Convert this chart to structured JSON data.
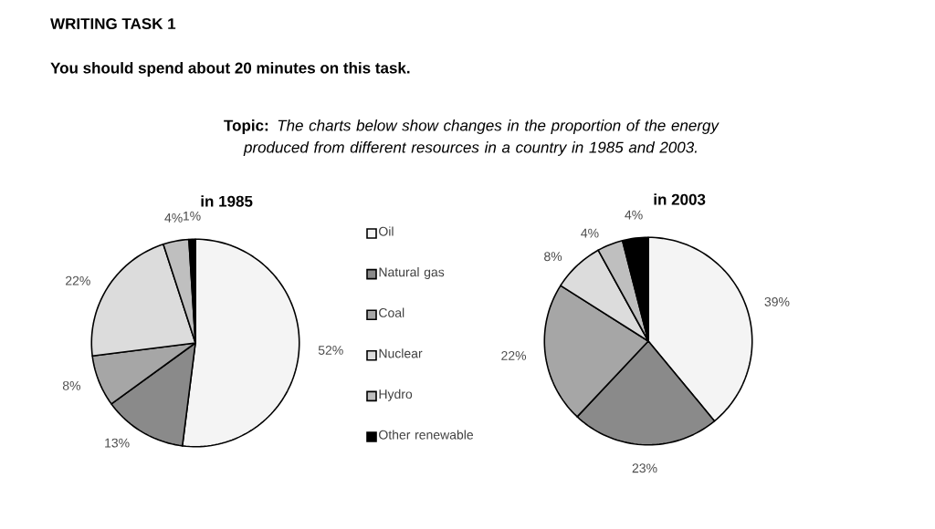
{
  "chart_data": [
    {
      "type": "other",
      "title": "WRITING TASK 1",
      "subtitle": "You should spend about 20 minutes on this task.",
      "annotations": [
        "**Topic:** *The charts below show changes in the proportion of the energy produced from different resources in a country in 1985 and 2003.*"
      ]
    },
    {
      "type": "pie",
      "title": "in 1985",
      "legend": "right",
      "categories": [
        "Oil",
        "Natural gas",
        "Coal",
        "Nuclear",
        "Hydro",
        "Other renewable"
      ],
      "values": [
        52,
        13,
        8,
        22,
        4,
        1
      ],
      "value_labels": [
        "52%",
        "13%",
        "8%",
        "22%",
        "4%",
        "1%"
      ],
      "colors": [
        "#f4f4f4",
        "#8a8a8a",
        "#a6a6a6",
        "#dcdcdc",
        "#bfbfbf",
        "#000000"
      ]
    },
    {
      "type": "pie",
      "title": "in 2003",
      "categories": [
        null,
        null,
        null,
        null,
        null,
        null
      ],
      "values": [
        39,
        23,
        22,
        8,
        4,
        4
      ],
      "value_labels": [
        "39%",
        "23%",
        "22%",
        "8%",
        "4%",
        "4%"
      ],
      "colors": [
        "#f4f4f4",
        "#8a8a8a",
        "#a6a6a6",
        "#dcdcdc",
        "#bfbfbf",
        "#000000"
      ]
    }
  ]
}
